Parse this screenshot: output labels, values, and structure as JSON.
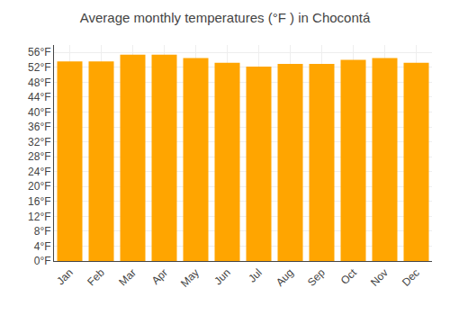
{
  "chart_data": {
    "type": "bar",
    "title": "Average monthly temperatures (°F ) in Chocontá",
    "categories": [
      "Jan",
      "Feb",
      "Mar",
      "Apr",
      "May",
      "Jun",
      "Jul",
      "Aug",
      "Sep",
      "Oct",
      "Nov",
      "Dec"
    ],
    "values": [
      53.6,
      53.6,
      55.4,
      55.4,
      54.5,
      53.2,
      52.2,
      52.9,
      52.9,
      54.0,
      54.5,
      53.2
    ],
    "color": "#FFA500",
    "ylim": [
      0,
      58
    ],
    "yticks": [
      {
        "value": 0,
        "label": "0°F"
      },
      {
        "value": 4,
        "label": "4°F"
      },
      {
        "value": 8,
        "label": "8°F"
      },
      {
        "value": 12,
        "label": "12°F"
      },
      {
        "value": 16,
        "label": "16°F"
      },
      {
        "value": 20,
        "label": "20°F"
      },
      {
        "value": 24,
        "label": "24°F"
      },
      {
        "value": 28,
        "label": "28°F"
      },
      {
        "value": 32,
        "label": "32°F"
      },
      {
        "value": 36,
        "label": "36°F"
      },
      {
        "value": 40,
        "label": "40°F"
      },
      {
        "value": 44,
        "label": "44°F"
      },
      {
        "value": 48,
        "label": "48°F"
      },
      {
        "value": 52,
        "label": "52°F"
      },
      {
        "value": 56,
        "label": "56°F"
      }
    ],
    "grid": true
  }
}
